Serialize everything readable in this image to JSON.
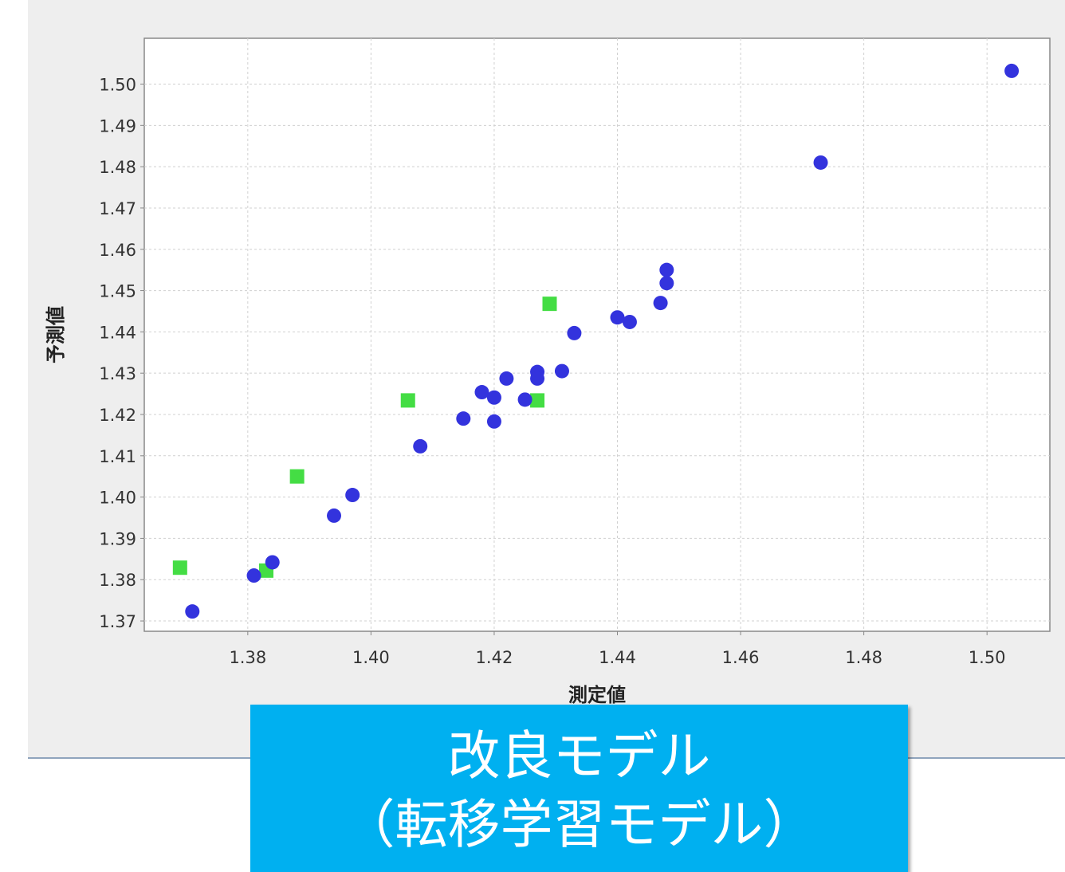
{
  "chart_data": {
    "type": "scatter",
    "title": "",
    "xlabel": "測定値",
    "ylabel": "予測値",
    "xlim": [
      1.3632,
      1.5102
    ],
    "ylim": [
      1.3675,
      1.5111
    ],
    "x_ticks": [
      "1.38",
      "1.40",
      "1.42",
      "1.44",
      "1.46",
      "1.48",
      "1.50"
    ],
    "y_ticks": [
      "1.37",
      "1.38",
      "1.39",
      "1.40",
      "1.41",
      "1.42",
      "1.43",
      "1.44",
      "1.45",
      "1.46",
      "1.47",
      "1.48",
      "1.49",
      "1.50"
    ],
    "grid": true,
    "legend": "none",
    "series": [
      {
        "marker": "circle",
        "color": "#3333dd",
        "points": [
          [
            1.371,
            1.3723
          ],
          [
            1.381,
            1.381
          ],
          [
            1.384,
            1.3842
          ],
          [
            1.394,
            1.3955
          ],
          [
            1.397,
            1.4005
          ],
          [
            1.408,
            1.4123
          ],
          [
            1.415,
            1.419
          ],
          [
            1.418,
            1.4254
          ],
          [
            1.42,
            1.4241
          ],
          [
            1.42,
            1.4183
          ],
          [
            1.422,
            1.4287
          ],
          [
            1.425,
            1.4236
          ],
          [
            1.427,
            1.4303
          ],
          [
            1.427,
            1.4287
          ],
          [
            1.431,
            1.4305
          ],
          [
            1.433,
            1.4397
          ],
          [
            1.44,
            1.4435
          ],
          [
            1.442,
            1.4424
          ],
          [
            1.447,
            1.447
          ],
          [
            1.448,
            1.4518
          ],
          [
            1.448,
            1.455
          ],
          [
            1.473,
            1.481
          ],
          [
            1.504,
            1.5032
          ]
        ]
      },
      {
        "marker": "square",
        "color": "#44dd44",
        "points": [
          [
            1.369,
            1.3829
          ],
          [
            1.383,
            1.3822
          ],
          [
            1.388,
            1.405
          ],
          [
            1.406,
            1.4234
          ],
          [
            1.427,
            1.4234
          ],
          [
            1.429,
            1.4468
          ]
        ]
      }
    ]
  },
  "caption": {
    "line1": "改良モデル",
    "line2": "（転移学習モデル）"
  },
  "colors": {
    "panel_bg": "#eeeeee",
    "plot_bg": "#ffffff",
    "caption_bg": "#00b0f0"
  }
}
